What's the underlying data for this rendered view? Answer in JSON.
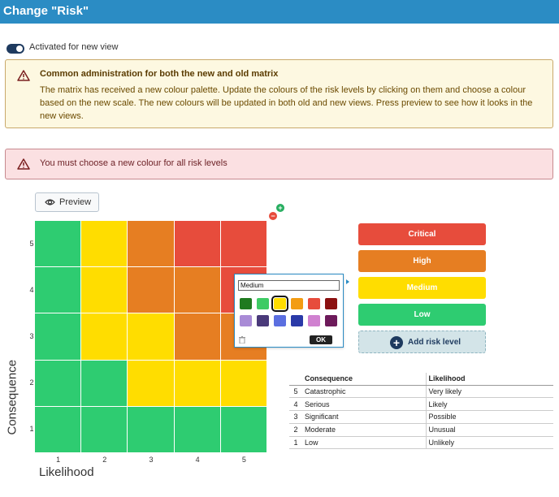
{
  "window": {
    "title": "Change \"Risk\""
  },
  "toggle": {
    "label": "Activated for new view",
    "on": true
  },
  "warning": {
    "heading": "Common administration for both the new and old matrix",
    "body": "The matrix has received a new colour palette. Update the colours of the risk levels by clicking on them and choose a colour based on the new scale. The new colours will be updated in both old and new views. Press preview to see how it looks in the new views."
  },
  "error": {
    "message": "You must choose a new colour for all risk levels"
  },
  "preview_button": {
    "label": "Preview"
  },
  "matrix": {
    "y_label": "Consequence",
    "x_label": "Likelihood",
    "y_ticks": [
      "5",
      "4",
      "3",
      "2",
      "1"
    ],
    "x_ticks": [
      "1",
      "2",
      "3",
      "4",
      "5"
    ],
    "colors": {
      "G": "#2ecc71",
      "Y": "#ffdd00",
      "O": "#e67e22",
      "R": "#e74c3c"
    },
    "rows": [
      [
        "G",
        "Y",
        "O",
        "R",
        "R"
      ],
      [
        "G",
        "Y",
        "O",
        "O",
        "R"
      ],
      [
        "G",
        "Y",
        "Y",
        "O",
        "O"
      ],
      [
        "G",
        "G",
        "Y",
        "Y",
        "Y"
      ],
      [
        "G",
        "G",
        "G",
        "G",
        "G"
      ]
    ]
  },
  "color_picker": {
    "name_value": "Medium",
    "swatches": [
      "#1f7a1f",
      "#3ecb64",
      "#ffdd00",
      "#f39c12",
      "#e74c3c",
      "#8b1010",
      "#a98bd6",
      "#4a3a7a",
      "#5b6fe0",
      "#2a3aa8",
      "#d081d0",
      "#6d1a5a"
    ],
    "selected_index": 2,
    "ok_label": "OK"
  },
  "risk_levels": [
    {
      "label": "Critical",
      "color": "#e74c3c"
    },
    {
      "label": "High",
      "color": "#e67e22"
    },
    {
      "label": "Medium",
      "color": "#ffdd00"
    },
    {
      "label": "Low",
      "color": "#2ecc71"
    }
  ],
  "add_risk_level": {
    "label": "Add risk level"
  },
  "legend": {
    "headers": [
      "Consequence",
      "Likelihood"
    ],
    "rows": [
      {
        "num": "5",
        "consequence": "Catastrophic",
        "likelihood": "Very likely"
      },
      {
        "num": "4",
        "consequence": "Serious",
        "likelihood": "Likely"
      },
      {
        "num": "3",
        "consequence": "Significant",
        "likelihood": "Possible"
      },
      {
        "num": "2",
        "consequence": "Moderate",
        "likelihood": "Unusual"
      },
      {
        "num": "1",
        "consequence": "Low",
        "likelihood": "Unlikely"
      }
    ]
  }
}
